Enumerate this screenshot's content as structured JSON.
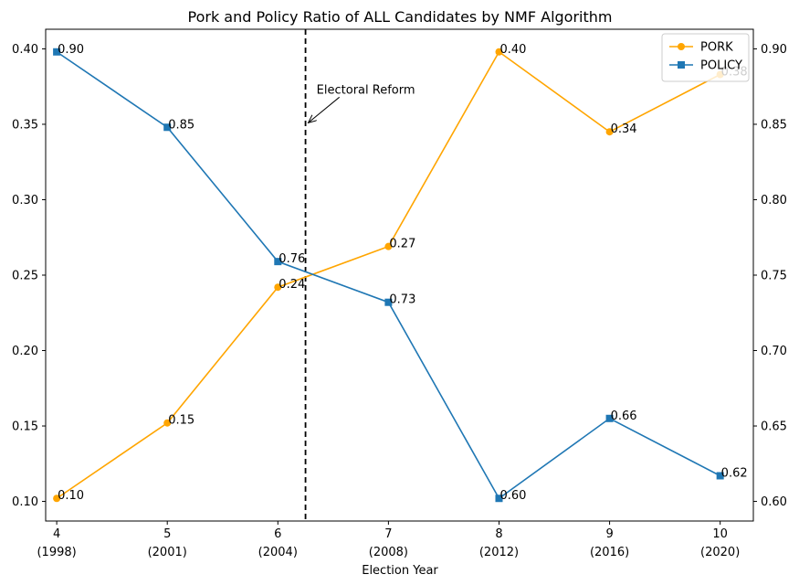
{
  "chart_data": {
    "type": "line",
    "title": "Pork and Policy Ratio of ALL Candidates by NMF Algorithm",
    "xlabel": "Election Year",
    "ylabel_left": "",
    "ylabel_right": "",
    "x": [
      4,
      5,
      6,
      7,
      8,
      9,
      10
    ],
    "x_tick_labels": [
      [
        "4",
        "(1998)"
      ],
      [
        "5",
        "(2001)"
      ],
      [
        "6",
        "(2004)"
      ],
      [
        "7",
        "(2008)"
      ],
      [
        "8",
        "(2012)"
      ],
      [
        "9",
        "(2016)"
      ],
      [
        "10",
        "(2020)"
      ]
    ],
    "xlim": [
      3.9,
      10.3
    ],
    "y_left": {
      "lim": [
        0.087,
        0.413
      ],
      "ticks": [
        0.1,
        0.15,
        0.2,
        0.25,
        0.3,
        0.35,
        0.4
      ],
      "tick_labels": [
        "0.10",
        "0.15",
        "0.20",
        "0.25",
        "0.30",
        "0.35",
        "0.40"
      ]
    },
    "y_right": {
      "lim": [
        0.587,
        0.913
      ],
      "ticks": [
        0.6,
        0.65,
        0.7,
        0.75,
        0.8,
        0.85,
        0.9
      ],
      "tick_labels": [
        "0.60",
        "0.65",
        "0.70",
        "0.75",
        "0.80",
        "0.85",
        "0.90"
      ]
    },
    "series": [
      {
        "name": "PORK",
        "axis": "left",
        "color": "#ffa500",
        "marker": "circle",
        "values": [
          0.102,
          0.152,
          0.242,
          0.269,
          0.398,
          0.345,
          0.383
        ],
        "labels": [
          "0.10",
          "0.15",
          "0.24",
          "0.27",
          "0.40",
          "0.34",
          "0.38"
        ]
      },
      {
        "name": "POLICY",
        "axis": "right",
        "color": "#1f77b4",
        "marker": "square",
        "values": [
          0.898,
          0.848,
          0.759,
          0.732,
          0.602,
          0.655,
          0.617
        ],
        "labels": [
          "0.90",
          "0.85",
          "0.76",
          "0.73",
          "0.60",
          "0.66",
          "0.62"
        ]
      }
    ],
    "annotations": [
      {
        "text": "Electoral Reform",
        "vline_x": 6.25,
        "arrow_to": [
          6.25,
          0.351
        ],
        "text_at": [
          6.35,
          0.371
        ]
      }
    ],
    "legend": {
      "position": "top-right",
      "entries": [
        "PORK",
        "POLICY"
      ]
    },
    "grid": false
  }
}
